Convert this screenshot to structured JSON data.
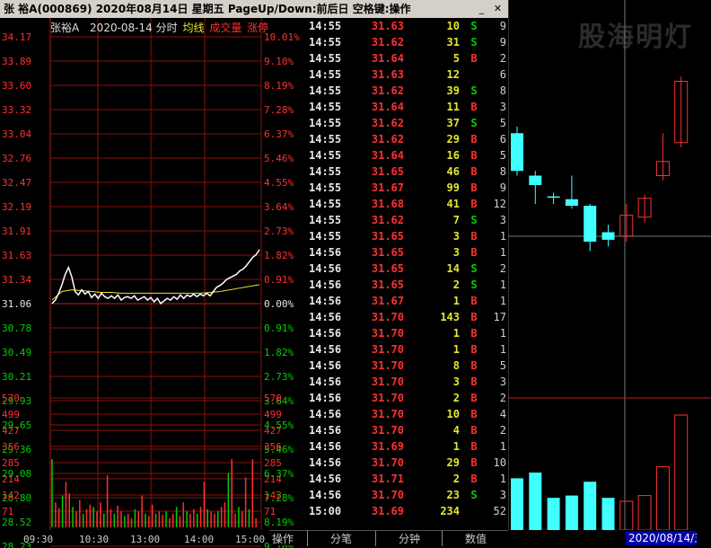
{
  "title": "张 裕A(000869) 2020年08月14日 星期五 PageUp/Down:前后日 空格键:操作",
  "watermark": "股海明灯",
  "chart_header": {
    "name": "张裕A",
    "date": "2020-08-14",
    "period": "分时",
    "avg_label": "均线",
    "vol_label": "成交量",
    "limit_label": "涨停"
  },
  "colors": {
    "up": "#ff3030",
    "down": "#00d000",
    "flat": "#e6e6e6",
    "avg_line": "#e6e630",
    "price_line": "#ffffff",
    "cyan": "#40ffff"
  },
  "price_axis": {
    "left": [
      "34.17",
      "33.89",
      "33.60",
      "33.32",
      "33.04",
      "32.76",
      "32.47",
      "32.19",
      "31.91",
      "31.63",
      "31.34",
      "31.06",
      "30.78",
      "30.49",
      "30.21",
      "29.93",
      "29.65",
      "29.36",
      "29.08",
      "28.80",
      "28.52",
      "28.23"
    ],
    "right": [
      "10.01%",
      "9.10%",
      "8.19%",
      "7.28%",
      "6.37%",
      "5.46%",
      "4.55%",
      "3.64%",
      "2.73%",
      "1.82%",
      "0.91%",
      "0.00%",
      "0.91%",
      "1.82%",
      "2.73%",
      "3.64%",
      "4.55%",
      "5.46%",
      "6.37%",
      "7.28%",
      "8.19%",
      "9.10%"
    ]
  },
  "volume_axis": [
    "570",
    "499",
    "427",
    "356",
    "285",
    "214",
    "142",
    "71"
  ],
  "time_axis": [
    "09:30",
    "10:30",
    "13:00",
    "14:00",
    "15:00"
  ],
  "chart_data": {
    "type": "line",
    "prev_close": 31.06,
    "price": [
      31.06,
      31.1,
      31.18,
      31.28,
      31.4,
      31.48,
      31.37,
      31.2,
      31.16,
      31.22,
      31.17,
      31.2,
      31.13,
      31.17,
      31.12,
      31.18,
      31.14,
      31.12,
      31.15,
      31.12,
      31.16,
      31.1,
      31.13,
      31.14,
      31.12,
      31.15,
      31.1,
      31.12,
      31.14,
      31.1,
      31.13,
      31.08,
      31.12,
      31.06,
      31.09,
      31.12,
      31.1,
      31.14,
      31.11,
      31.16,
      31.12,
      31.16,
      31.14,
      31.17,
      31.14,
      31.17,
      31.15,
      31.18,
      31.15,
      31.2,
      31.25,
      31.27,
      31.3,
      31.34,
      31.36,
      31.38,
      31.4,
      31.44,
      31.46,
      31.5,
      31.55,
      31.6,
      31.63,
      31.69
    ],
    "avg": [
      31.1,
      31.2,
      31.22,
      31.21,
      31.2,
      31.19,
      31.19,
      31.18,
      31.18,
      31.18,
      31.18,
      31.18,
      31.18,
      31.18,
      31.18,
      31.18,
      31.19,
      31.2,
      31.22,
      31.24,
      31.26,
      31.28
    ],
    "volume": [
      300,
      110,
      85,
      140,
      200,
      150,
      90,
      70,
      120,
      60,
      80,
      100,
      90,
      70,
      110,
      60,
      230,
      80,
      60,
      95,
      70,
      50,
      60,
      40,
      80,
      70,
      140,
      60,
      50,
      100,
      60,
      70,
      55,
      70,
      40,
      60,
      90,
      50,
      110,
      70,
      60,
      80,
      60,
      90,
      200,
      80,
      70,
      60,
      70,
      90,
      110,
      240,
      300,
      60,
      90,
      70,
      220,
      80,
      300,
      40
    ]
  },
  "trades": [
    {
      "time": "14:55",
      "price": "31.63",
      "vol": "10",
      "side": "S",
      "num": "9"
    },
    {
      "time": "14:55",
      "price": "31.62",
      "vol": "31",
      "side": "S",
      "num": "9"
    },
    {
      "time": "14:55",
      "price": "31.64",
      "vol": "5",
      "side": "B",
      "num": "2"
    },
    {
      "time": "14:55",
      "price": "31.63",
      "vol": "12",
      "side": "",
      "num": "6"
    },
    {
      "time": "14:55",
      "price": "31.62",
      "vol": "39",
      "side": "S",
      "num": "8"
    },
    {
      "time": "14:55",
      "price": "31.64",
      "vol": "11",
      "side": "B",
      "num": "3"
    },
    {
      "time": "14:55",
      "price": "31.62",
      "vol": "37",
      "side": "S",
      "num": "5"
    },
    {
      "time": "14:55",
      "price": "31.62",
      "vol": "29",
      "side": "B",
      "num": "6"
    },
    {
      "time": "14:55",
      "price": "31.64",
      "vol": "16",
      "side": "B",
      "num": "5"
    },
    {
      "time": "14:55",
      "price": "31.65",
      "vol": "46",
      "side": "B",
      "num": "8"
    },
    {
      "time": "14:55",
      "price": "31.67",
      "vol": "99",
      "side": "B",
      "num": "9"
    },
    {
      "time": "14:55",
      "price": "31.68",
      "vol": "41",
      "side": "B",
      "num": "12"
    },
    {
      "time": "14:55",
      "price": "31.62",
      "vol": "7",
      "side": "S",
      "num": "3"
    },
    {
      "time": "14:55",
      "price": "31.65",
      "vol": "3",
      "side": "B",
      "num": "1"
    },
    {
      "time": "14:56",
      "price": "31.65",
      "vol": "3",
      "side": "B",
      "num": "1"
    },
    {
      "time": "14:56",
      "price": "31.65",
      "vol": "14",
      "side": "S",
      "num": "2"
    },
    {
      "time": "14:56",
      "price": "31.65",
      "vol": "2",
      "side": "S",
      "num": "1"
    },
    {
      "time": "14:56",
      "price": "31.67",
      "vol": "1",
      "side": "B",
      "num": "1"
    },
    {
      "time": "14:56",
      "price": "31.70",
      "vol": "143",
      "side": "B",
      "num": "17"
    },
    {
      "time": "14:56",
      "price": "31.70",
      "vol": "1",
      "side": "B",
      "num": "1"
    },
    {
      "time": "14:56",
      "price": "31.70",
      "vol": "1",
      "side": "B",
      "num": "1"
    },
    {
      "time": "14:56",
      "price": "31.70",
      "vol": "8",
      "side": "B",
      "num": "5"
    },
    {
      "time": "14:56",
      "price": "31.70",
      "vol": "3",
      "side": "B",
      "num": "3"
    },
    {
      "time": "14:56",
      "price": "31.70",
      "vol": "2",
      "side": "B",
      "num": "2"
    },
    {
      "time": "14:56",
      "price": "31.70",
      "vol": "10",
      "side": "B",
      "num": "4"
    },
    {
      "time": "14:56",
      "price": "31.70",
      "vol": "4",
      "side": "B",
      "num": "2"
    },
    {
      "time": "14:56",
      "price": "31.69",
      "vol": "1",
      "side": "B",
      "num": "1"
    },
    {
      "time": "14:56",
      "price": "31.70",
      "vol": "29",
      "side": "B",
      "num": "10"
    },
    {
      "time": "14:56",
      "price": "31.71",
      "vol": "2",
      "side": "B",
      "num": "1"
    },
    {
      "time": "14:56",
      "price": "31.70",
      "vol": "23",
      "side": "S",
      "num": "3"
    },
    {
      "time": "15:00",
      "price": "31.69",
      "vol": "234",
      "side": "",
      "num": "52"
    }
  ],
  "tabs": {
    "operate": "操作",
    "ticks": "分笔",
    "minutes": "分钟",
    "values": "数值"
  },
  "kline_date": "2020/08/14/五",
  "candles": [
    {
      "o": 31.75,
      "c": 31.35,
      "h": 31.82,
      "l": 31.3
    },
    {
      "o": 31.3,
      "c": 31.2,
      "h": 31.35,
      "l": 31.0
    },
    {
      "o": 31.08,
      "c": 31.08,
      "h": 31.12,
      "l": 31.0
    },
    {
      "o": 31.05,
      "c": 30.98,
      "h": 31.3,
      "l": 30.95
    },
    {
      "o": 30.98,
      "c": 30.6,
      "h": 31.0,
      "l": 30.5
    },
    {
      "o": 30.7,
      "c": 30.62,
      "h": 30.78,
      "l": 30.55
    },
    {
      "o": 30.66,
      "c": 30.88,
      "h": 31.0,
      "l": 30.6
    },
    {
      "o": 30.86,
      "c": 31.06,
      "h": 31.1,
      "l": 30.8
    },
    {
      "o": 31.3,
      "c": 31.45,
      "h": 31.75,
      "l": 31.25
    },
    {
      "o": 31.65,
      "c": 32.3,
      "h": 32.35,
      "l": 31.6
    }
  ],
  "kline_axis_right": [
    "9",
    "9",
    "2",
    "6",
    "8",
    "3",
    "5",
    "6",
    "5",
    "8",
    "9",
    "12",
    "3",
    "1",
    "1",
    "2",
    "1",
    "1",
    "17",
    "1",
    "1",
    "5",
    "3",
    "2",
    "4",
    "2",
    "1",
    "10",
    "1",
    "3"
  ],
  "kline_volume": [
    0.45,
    0.5,
    0.28,
    0.3,
    0.42,
    0.28,
    0.25,
    0.3,
    0.55,
    1.0
  ]
}
